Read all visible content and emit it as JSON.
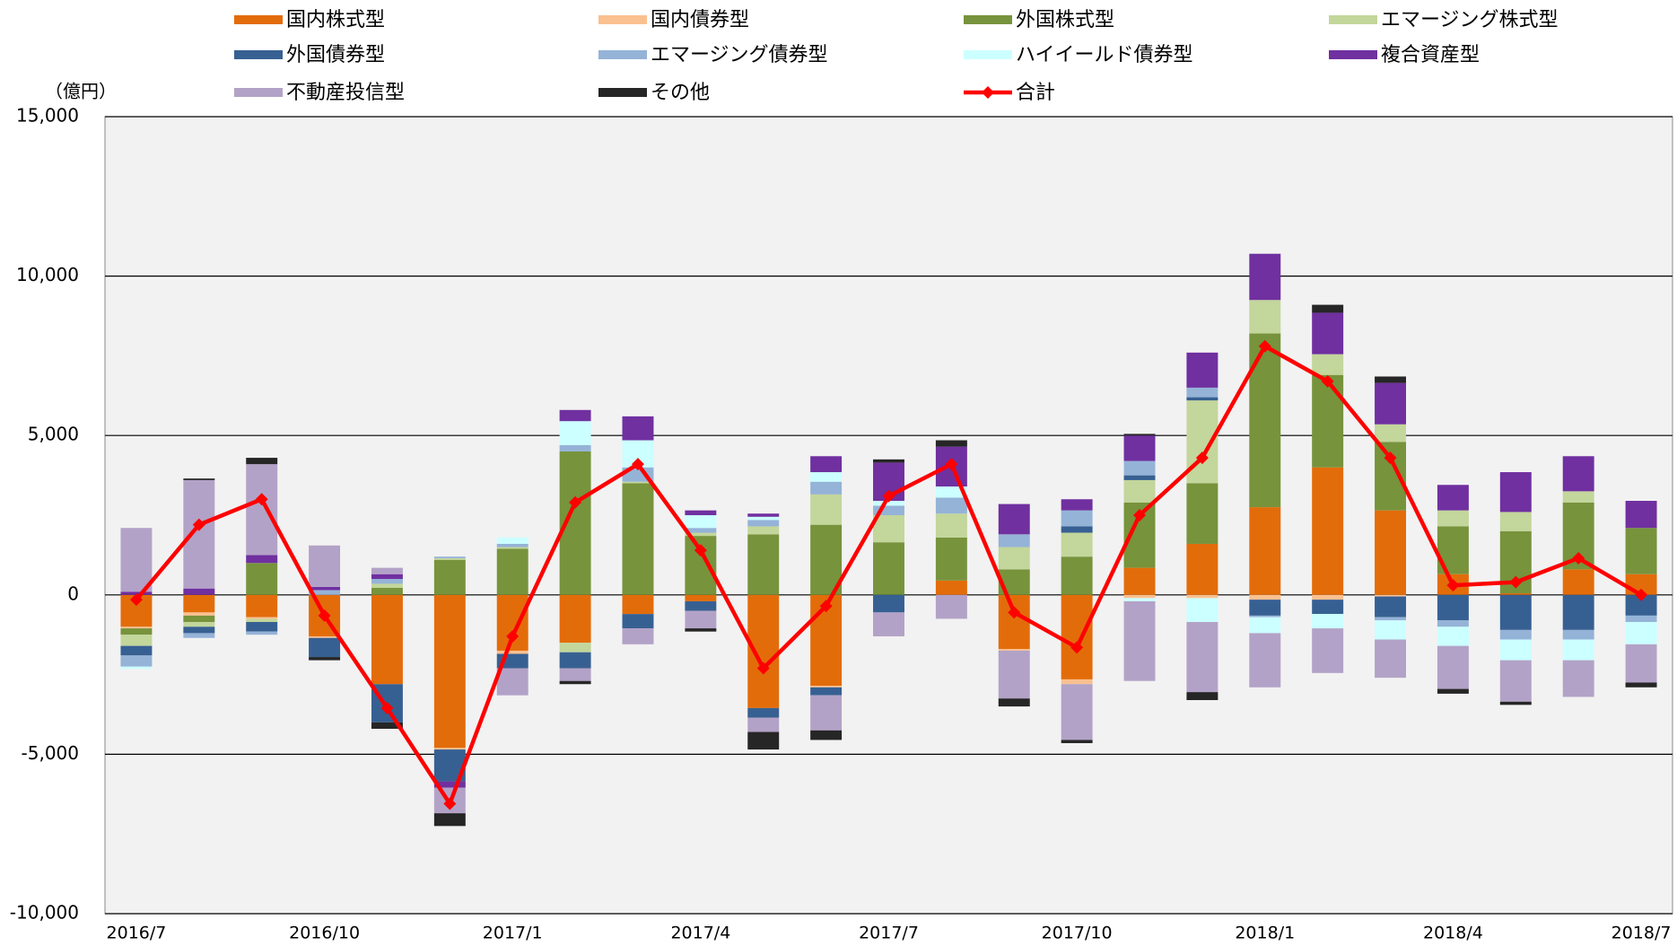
{
  "chart_data": {
    "type": "bar",
    "stacked": true,
    "unit_label": "（億円）",
    "categories": [
      "2016/7",
      null,
      null,
      "2016/10",
      null,
      null,
      "2017/1",
      null,
      null,
      "2017/4",
      null,
      null,
      "2017/7",
      null,
      null,
      "2017/10",
      null,
      null,
      "2018/1",
      null,
      null,
      "2018/4",
      null,
      null,
      "2018/7"
    ],
    "ylim": [
      -10000,
      15000
    ],
    "yticks": [
      {
        "value": -10000,
        "label": "-10,000"
      },
      {
        "value": -5000,
        "label": "-5,000"
      },
      0,
      {
        "value": 5000,
        "label": "5,000"
      },
      {
        "value": 10000,
        "label": "10,000"
      },
      {
        "value": 15000,
        "label": "15,000"
      }
    ],
    "grid": true,
    "legend": "top",
    "series": [
      {
        "name": "国内株式型",
        "color": "#e36c0a",
        "values": [
          -1000,
          -550,
          -700,
          -1300,
          -2800,
          -4800,
          -1750,
          -1500,
          -600,
          -200,
          -3550,
          -2850,
          0,
          450,
          -1700,
          -2650,
          850,
          1600,
          2750,
          4000,
          2650,
          650,
          50,
          800,
          650
        ]
      },
      {
        "name": "国内債券型",
        "color": "#fac090",
        "values": [
          -50,
          -100,
          -50,
          -50,
          0,
          -50,
          -100,
          0,
          0,
          0,
          0,
          -50,
          0,
          0,
          -50,
          -150,
          -100,
          -100,
          -150,
          -150,
          -50,
          0,
          0,
          0,
          0
        ]
      },
      {
        "name": "外国株式型",
        "color": "#77933c",
        "values": [
          -200,
          -200,
          1000,
          0,
          220,
          1100,
          1450,
          4500,
          3500,
          1850,
          1900,
          2200,
          1650,
          1350,
          800,
          1200,
          2050,
          1900,
          5450,
          2900,
          2150,
          1500,
          1950,
          2100,
          1450
        ]
      },
      {
        "name": "エマージング株式型",
        "color": "#c3d69b",
        "values": [
          -350,
          -150,
          -100,
          0,
          130,
          50,
          50,
          -300,
          50,
          100,
          250,
          950,
          850,
          750,
          700,
          750,
          700,
          2600,
          1050,
          650,
          550,
          500,
          600,
          350,
          0
        ]
      },
      {
        "name": "外国債券型",
        "color": "#376092",
        "values": [
          -300,
          -200,
          -300,
          -600,
          -1200,
          -1000,
          -450,
          -500,
          -450,
          -300,
          -300,
          -250,
          -550,
          0,
          0,
          200,
          150,
          100,
          -500,
          -450,
          -650,
          -800,
          -1100,
          -1100,
          -650
        ]
      },
      {
        "name": "エマージング債券型",
        "color": "#95b3d7",
        "values": [
          -350,
          -150,
          -100,
          150,
          150,
          50,
          100,
          200,
          450,
          150,
          200,
          400,
          300,
          500,
          400,
          500,
          450,
          300,
          -50,
          0,
          -100,
          -200,
          -300,
          -300,
          -200
        ]
      },
      {
        "name": "ハイイールド債券型",
        "color": "#ccffff",
        "values": [
          -70,
          0,
          0,
          0,
          0,
          0,
          200,
          750,
          850,
          400,
          100,
          300,
          150,
          350,
          0,
          0,
          -100,
          -750,
          -500,
          -450,
          -600,
          -600,
          -650,
          -650,
          -700
        ]
      },
      {
        "name": "複合資産型",
        "color": "#7030a0",
        "values": [
          100,
          200,
          250,
          100,
          150,
          -200,
          0,
          350,
          750,
          150,
          100,
          500,
          1200,
          1250,
          950,
          350,
          800,
          1100,
          1450,
          1300,
          1300,
          800,
          1250,
          1100,
          850
        ]
      },
      {
        "name": "不動産投信型",
        "color": "#b3a2c7",
        "values": [
          2000,
          3400,
          2850,
          1300,
          200,
          -800,
          -850,
          -400,
          -500,
          -550,
          -450,
          -1100,
          -750,
          -750,
          -1500,
          -1750,
          -2500,
          -2200,
          -1700,
          -1400,
          -1200,
          -1350,
          -1300,
          -1150,
          -1200
        ]
      },
      {
        "name": "その他",
        "color": "#262626",
        "values": [
          0,
          50,
          200,
          -100,
          -200,
          -400,
          0,
          -100,
          0,
          -100,
          -550,
          -300,
          100,
          200,
          -250,
          -100,
          50,
          -250,
          0,
          250,
          200,
          -150,
          -100,
          0,
          -150
        ]
      },
      {
        "name": "合計",
        "color": "#ff0000",
        "type": "line",
        "values": [
          -150,
          2200,
          3000,
          -650,
          -3550,
          -6550,
          -1300,
          2900,
          4100,
          1400,
          -2300,
          -350,
          3100,
          4100,
          -550,
          -1650,
          2500,
          4300,
          7800,
          6700,
          4300,
          300,
          400,
          1150,
          0
        ]
      }
    ]
  }
}
